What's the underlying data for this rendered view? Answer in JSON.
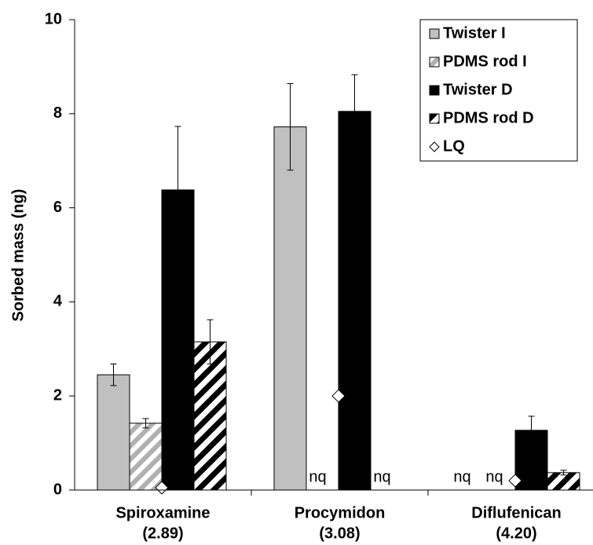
{
  "chart_data": {
    "type": "bar",
    "ylabel": "Sorbed mass (ng)",
    "categories": [
      "Spiroxamine",
      "Procymidon",
      "Diflufenican"
    ],
    "category_sublabels": [
      "(2.89)",
      "(3.08)",
      "(4.20)"
    ],
    "ylim": [
      0,
      10
    ],
    "yticks": [
      0,
      2,
      4,
      6,
      8,
      10
    ],
    "grid": false,
    "legend": "top-right",
    "series": [
      {
        "name": "Twister I",
        "color": "#c0c0c0",
        "hatch": false,
        "values": [
          2.45,
          7.72,
          null
        ],
        "errors": [
          0.23,
          0.92,
          null
        ],
        "value_labels": [
          null,
          null,
          "nq"
        ]
      },
      {
        "name": "PDMS rod I",
        "color": "#b0b0b0",
        "hatch": true,
        "values": [
          1.42,
          null,
          null
        ],
        "errors": [
          0.1,
          null,
          null
        ],
        "value_labels": [
          null,
          "nq",
          "nq"
        ]
      },
      {
        "name": "Twister D",
        "color": "#000000",
        "hatch": false,
        "values": [
          6.38,
          8.05,
          1.27
        ],
        "errors": [
          1.35,
          0.78,
          0.3
        ],
        "value_labels": [
          null,
          null,
          null
        ]
      },
      {
        "name": "PDMS rod D",
        "color": "#000000",
        "hatch": true,
        "values": [
          3.15,
          null,
          0.37
        ],
        "errors": [
          0.47,
          null,
          0.05
        ],
        "value_labels": [
          null,
          "nq",
          null
        ]
      },
      {
        "name": "LQ",
        "color": "#ffffff",
        "marker": "diamond",
        "values": [
          0.05,
          2.0,
          0.2
        ]
      }
    ]
  }
}
